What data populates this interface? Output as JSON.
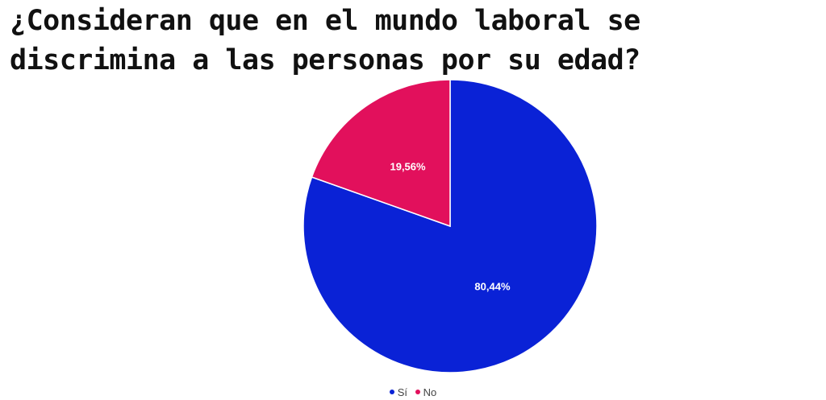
{
  "title": "¿Consideran que en el mundo laboral se discrimina a las personas por su edad?",
  "chart_data": {
    "type": "pie",
    "categories": [
      "Sí",
      "No"
    ],
    "values": [
      80.44,
      19.56
    ],
    "data_labels": [
      "80,44%",
      "19,56%"
    ],
    "colors": [
      "#0a22d6",
      "#e2105c"
    ],
    "start_angle_deg": 0,
    "direction": "clockwise",
    "legend": {
      "position": "bottom",
      "entries": [
        "Sí",
        "No"
      ]
    }
  }
}
